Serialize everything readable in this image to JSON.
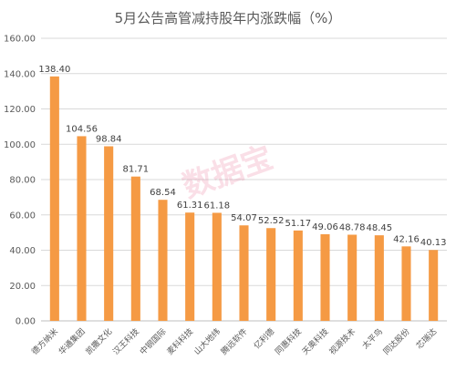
{
  "chart_data": {
    "type": "bar",
    "title": "5月公告高管减持股年内涨跌幅（%）",
    "categories": [
      "德方纳米",
      "华通集团",
      "凯撒文化",
      "汉王科技",
      "中钢国际",
      "麦科科技",
      "山大地纬",
      "腾远软件",
      "亿利德",
      "同惠科技",
      "天奥科技",
      "视源技术",
      "太平鸟",
      "同达股份",
      "芯瑞达"
    ],
    "values": [
      138.4,
      104.56,
      98.84,
      81.71,
      68.54,
      61.31,
      61.18,
      54.07,
      52.52,
      51.17,
      49.06,
      48.78,
      48.45,
      42.16,
      40.13
    ],
    "value_labels": [
      "138.40",
      "104.56",
      "98.84",
      "81.71",
      "68.54",
      "61.31",
      "61.18",
      "54.07",
      "52.52",
      "51.17",
      "49.06",
      "48.78",
      "48.45",
      "42.16",
      "40.13"
    ],
    "ylim": [
      0,
      160
    ],
    "yticks": [
      "0.00",
      "20.00",
      "40.00",
      "60.00",
      "80.00",
      "100.00",
      "120.00",
      "140.00",
      "160.00"
    ],
    "bar_color": "#F59A44",
    "grid": true
  },
  "watermark": "数据宝"
}
